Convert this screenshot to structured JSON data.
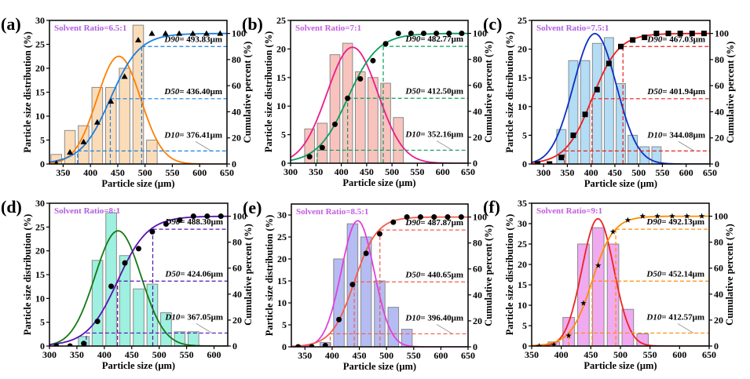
{
  "figure": {
    "xlabel": "Particle size (μm)",
    "ylabel_left": "Particle size distribution (%)",
    "ylabel_right": "Cumulative percent (%)"
  },
  "chart_data": [
    {
      "type": "bar",
      "panel": "(a)",
      "title": "Solvent Ratio=6.5:1",
      "title_color": "#b05ee0",
      "xlabel": "Particle size (μm)",
      "ylabel": "Particle size distribution (%)",
      "y2label": "Cumulative percent (%)",
      "xlim": [
        325,
        650
      ],
      "xticks": [
        350,
        400,
        450,
        500,
        550,
        600,
        650
      ],
      "ylim": [
        0,
        30
      ],
      "yticks": [
        0,
        5,
        10,
        15,
        20,
        25,
        30
      ],
      "y2lim": [
        0,
        110
      ],
      "y2ticks": [
        0,
        20,
        40,
        60,
        80,
        100
      ],
      "bar_color": "#fbdcb8",
      "dist_curve_color": "#ff7f00",
      "cum_color": "#1a7fe0",
      "marker": "triangle",
      "bars": {
        "x": [
          337.5,
          362.5,
          387.5,
          412.5,
          437.5,
          462.5,
          487.5,
          512.5
        ],
        "values": [
          2,
          7,
          8,
          16,
          16,
          20,
          29,
          5
        ]
      },
      "gauss_fit": {
        "mean": 452,
        "sigma": 40,
        "peak": 22.5
      },
      "cumulative_points": {
        "x": [
          337.5,
          362.5,
          387.5,
          412.5,
          437.5,
          462.5,
          487.5,
          512.5,
          537.5,
          562.5,
          587.5,
          612.5,
          637.5
        ],
        "values": [
          0.5,
          9,
          17,
          32,
          48,
          67,
          95,
          100,
          100,
          100,
          100,
          100,
          100
        ]
      },
      "D10": 376.41,
      "D50": 436.4,
      "D90": 493.83,
      "labels": {
        "D10": "= 376.41μm",
        "D50": "= 436.40μm",
        "D90": "= 493.83μm"
      }
    },
    {
      "type": "bar",
      "panel": "(b)",
      "title": "Solvent Ratio=7:1",
      "title_color": "#c25de0",
      "xlabel": "Particle size (μm)",
      "ylabel": "Particle size distribution (%)",
      "y2label": "Cumulative percent (%)",
      "xlim": [
        300,
        650
      ],
      "xticks": [
        300,
        350,
        400,
        450,
        500,
        550,
        600,
        650
      ],
      "ylim": [
        0,
        25
      ],
      "yticks": [
        0,
        5,
        10,
        15,
        20,
        25
      ],
      "y2lim": [
        0,
        110
      ],
      "y2ticks": [
        0,
        20,
        40,
        60,
        80,
        100
      ],
      "bar_color": "#f9c3bd",
      "dist_curve_color": "#ec1b8c",
      "cum_color": "#0a9e5a",
      "marker": "circle",
      "bars": {
        "x": [
          337.5,
          362.5,
          387.5,
          412.5,
          437.5,
          462.5,
          487.5,
          512.5
        ],
        "values": [
          6,
          7,
          19,
          21,
          16,
          15,
          14,
          8
        ]
      },
      "gauss_fit": {
        "mean": 422,
        "sigma": 50,
        "peak": 20.3
      },
      "cumulative_points": {
        "x": [
          337.5,
          362.5,
          387.5,
          412.5,
          437.5,
          462.5,
          487.5,
          512.5,
          537.5,
          562.5,
          587.5,
          612.5,
          637.5
        ],
        "values": [
          5,
          12,
          30,
          50,
          65,
          79,
          92,
          100,
          100,
          100,
          100,
          100,
          100
        ]
      },
      "D10": 352.16,
      "D50": 412.5,
      "D90": 482.77,
      "labels": {
        "D10": "= 352.16μm",
        "D50": "= 412.50μm",
        "D90": "= 482.77μm"
      }
    },
    {
      "type": "bar",
      "panel": "(c)",
      "title": "Solvent Ratio=7.5:1",
      "title_color": "#b05ee0",
      "xlabel": "Particle size (μm)",
      "ylabel": "Particle size distribution (%)",
      "y2label": "Cumulative percent (%)",
      "xlim": [
        275,
        650
      ],
      "xticks": [
        300,
        350,
        400,
        450,
        500,
        550,
        600,
        650
      ],
      "ylim": [
        0,
        25
      ],
      "yticks": [
        0,
        5,
        10,
        15,
        20,
        25
      ],
      "y2lim": [
        0,
        110
      ],
      "y2ticks": [
        0,
        20,
        40,
        60,
        80,
        100
      ],
      "bar_color": "#b3dcf5",
      "dist_curve_color": "#0a2fc4",
      "cum_color": "#ee1c1c",
      "marker": "square",
      "bars": {
        "x": [
          337.5,
          362.5,
          387.5,
          412.5,
          437.5,
          462.5,
          487.5,
          512.5,
          537.5
        ],
        "values": [
          6,
          18,
          18,
          21,
          22,
          14,
          5,
          3,
          3
        ]
      },
      "gauss_fit": {
        "mean": 408,
        "sigma": 45,
        "peak": 22.7
      },
      "cumulative_points": {
        "x": [
          287.5,
          312.5,
          337.5,
          362.5,
          387.5,
          412.5,
          437.5,
          462.5,
          487.5,
          512.5,
          537.5,
          562.5,
          587.5,
          612.5,
          637.5
        ],
        "values": [
          0,
          0,
          5,
          22,
          38,
          57,
          77,
          90,
          95,
          97,
          100,
          100,
          100,
          100,
          100
        ]
      },
      "D10": 344.08,
      "D50": 401.94,
      "D90": 467.03,
      "labels": {
        "D10": "= 344.08μm",
        "D50": "= 401.94μm",
        "D90": "= 467.03μm"
      }
    },
    {
      "type": "bar",
      "panel": "(d)",
      "title": "Solvent Ratio=8:1",
      "title_color": "#b05ee0",
      "xlabel": "Particle size (μm)",
      "ylabel": "Particle size distribution (%)",
      "y2label": "Cumulative percent (%)",
      "xlim": [
        300,
        625
      ],
      "xticks": [
        300,
        350,
        400,
        450,
        500,
        550,
        600
      ],
      "ylim": [
        0,
        30
      ],
      "yticks": [
        0,
        5,
        10,
        15,
        20,
        25,
        30
      ],
      "y2lim": [
        0,
        110
      ],
      "y2ticks": [
        0,
        20,
        40,
        60,
        80,
        100
      ],
      "bar_color": "#9ef0e0",
      "dist_curve_color": "#137a13",
      "cum_color": "#5a10b0",
      "marker": "circle",
      "bars": {
        "x": [
          362.5,
          387.5,
          412.5,
          437.5,
          462.5,
          487.5,
          512.5,
          537.5,
          562.5
        ],
        "values": [
          2,
          18,
          28,
          19,
          12,
          13,
          7,
          3,
          3
        ]
      },
      "gauss_fit": {
        "mean": 425,
        "sigma": 42,
        "peak": 24.2
      },
      "cumulative_points": {
        "x": [
          312.5,
          337.5,
          362.5,
          387.5,
          412.5,
          437.5,
          462.5,
          487.5,
          512.5,
          537.5,
          562.5,
          587.5,
          612.5
        ],
        "values": [
          0,
          0,
          2,
          19,
          46,
          64,
          75,
          88,
          94,
          97,
          100,
          100,
          100
        ]
      },
      "D10": 367.05,
      "D50": 424.06,
      "D90": 488.3,
      "labels": {
        "D10": "= 367.05μm",
        "D50": "= 424.06μm",
        "D90": "= 488.30μm"
      }
    },
    {
      "type": "bar",
      "panel": "(e)",
      "title": "Solvent Ratio=8.5:1",
      "title_color": "#c25de0",
      "xlabel": "Particle size (μm)",
      "ylabel": "Particle size distribution (%)",
      "y2label": "Cumulative percent (%)",
      "xlim": [
        325,
        650
      ],
      "xticks": [
        350,
        400,
        450,
        500,
        550,
        600,
        650
      ],
      "ylim": [
        0,
        32.5
      ],
      "yticks": [
        0,
        5,
        10,
        15,
        20,
        25,
        30
      ],
      "y2lim": [
        0,
        110
      ],
      "y2ticks": [
        0,
        20,
        40,
        60,
        80,
        100
      ],
      "bar_color": "#b5bcf2",
      "dist_curve_color": "#e040e0",
      "cum_color": "#f55a4a",
      "marker": "circle",
      "bars": {
        "x": [
          387.5,
          412.5,
          437.5,
          462.5,
          487.5,
          512.5,
          537.5
        ],
        "values": [
          1,
          20,
          28,
          25,
          15,
          9,
          4
        ]
      },
      "gauss_fit": {
        "mean": 447,
        "sigma": 30,
        "peak": 28.7
      },
      "cumulative_points": {
        "x": [
          337.5,
          362.5,
          387.5,
          412.5,
          437.5,
          462.5,
          487.5,
          512.5,
          537.5,
          562.5,
          587.5,
          612.5,
          637.5
        ],
        "values": [
          0,
          0,
          1,
          21,
          48,
          72,
          87,
          96,
          100,
          100,
          100,
          100,
          100
        ]
      },
      "D10": 396.4,
      "D50": 440.65,
      "D90": 487.87,
      "labels": {
        "D10": "= 396.40μm",
        "D50": "= 440.65μm",
        "D90": "= 487.87μm"
      }
    },
    {
      "type": "bar",
      "panel": "(f)",
      "title": "Solvent Ratio=9:1",
      "title_color": "#c25de0",
      "xlabel": "Particle size (μm)",
      "ylabel": "Particle size distribution (%)",
      "y2label": "Cumulative percent (%)",
      "xlim": [
        350,
        650
      ],
      "xticks": [
        350,
        400,
        450,
        500,
        550,
        600,
        650
      ],
      "ylim": [
        0,
        35
      ],
      "yticks": [
        0,
        5,
        10,
        15,
        20,
        25,
        30,
        35
      ],
      "y2lim": [
        0,
        110
      ],
      "y2ticks": [
        0,
        20,
        40,
        60,
        80,
        100
      ],
      "bar_color": "#f0aaf0",
      "dist_curve_color": "#ee2222",
      "cum_color": "#ff8c00",
      "marker": "star",
      "bars": {
        "x": [
          387.5,
          412.5,
          437.5,
          462.5,
          487.5,
          512.5,
          537.5
        ],
        "values": [
          1,
          7,
          25,
          29,
          25,
          9,
          3
        ]
      },
      "gauss_fit": {
        "mean": 462,
        "sigma": 27,
        "peak": 31.2
      },
      "cumulative_points": {
        "x": [
          362.5,
          387.5,
          412.5,
          437.5,
          462.5,
          487.5,
          512.5,
          537.5,
          562.5,
          587.5,
          612.5,
          637.5
        ],
        "values": [
          0,
          1,
          8,
          33,
          62,
          88,
          97,
          100,
          100,
          100,
          100,
          100
        ]
      },
      "D10": 412.57,
      "D50": 452.14,
      "D90": 492.13,
      "labels": {
        "D10": "= 412.57μm",
        "D50": "= 452.14μm",
        "D90": "= 492.13μm"
      }
    }
  ]
}
